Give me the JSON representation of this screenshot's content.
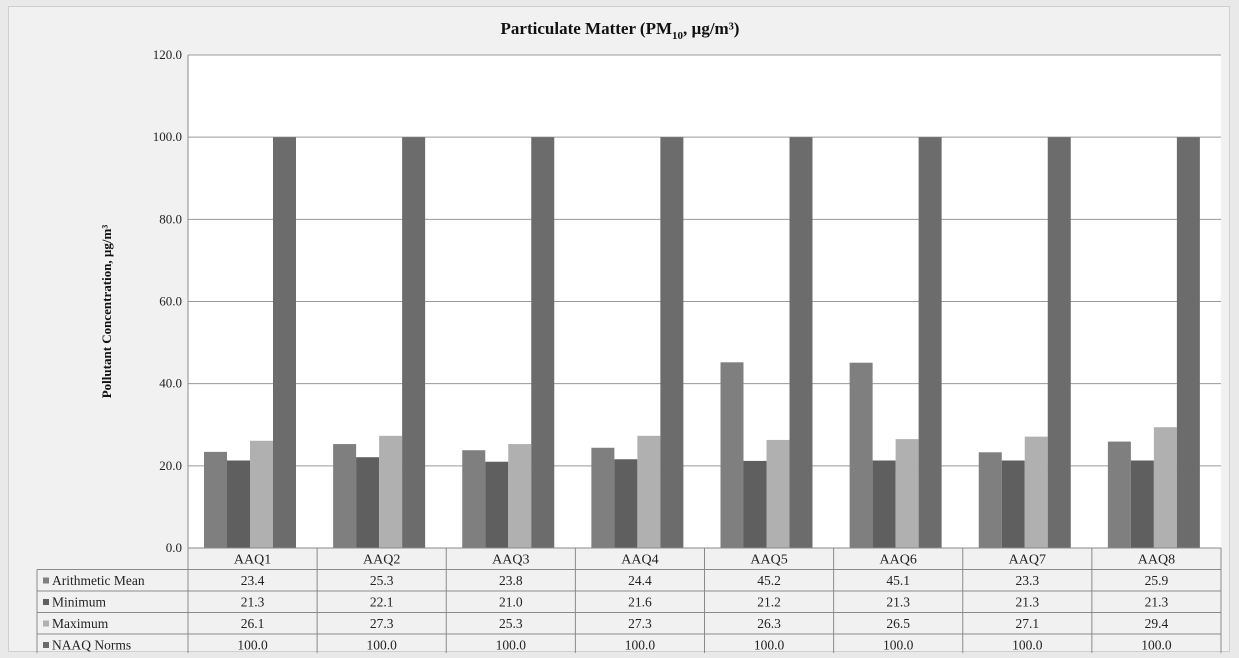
{
  "chart_data": {
    "type": "bar",
    "title_main": "Particulate Matter (PM",
    "title_sub": "10",
    "title_rest": ", µg/m³)",
    "ylabel": "Pollutant Concentration, µg/m³",
    "ylim": [
      0,
      120
    ],
    "yticks": [
      "0.0",
      "20.0",
      "40.0",
      "60.0",
      "80.0",
      "100.0",
      "120.0"
    ],
    "grid": true,
    "categories": [
      "AAQ1",
      "AAQ2",
      "AAQ3",
      "AAQ4",
      "AAQ5",
      "AAQ6",
      "AAQ7",
      "AAQ8"
    ],
    "series": [
      {
        "name": "Arithmetic Mean",
        "color": "#7f7f7f",
        "values": [
          23.4,
          25.3,
          23.8,
          24.4,
          45.2,
          45.1,
          23.3,
          25.9
        ]
      },
      {
        "name": "Minimum",
        "color": "#5f5f5f",
        "values": [
          21.3,
          22.1,
          21.0,
          21.6,
          21.2,
          21.3,
          21.3,
          21.3
        ]
      },
      {
        "name": "Maximum",
        "color": "#b0b0b0",
        "values": [
          26.1,
          27.3,
          25.3,
          27.3,
          26.3,
          26.5,
          27.1,
          29.4
        ]
      },
      {
        "name": "NAAQ Norms",
        "color": "#6c6c6c",
        "values": [
          100.0,
          100.0,
          100.0,
          100.0,
          100.0,
          100.0,
          100.0,
          100.0
        ]
      }
    ],
    "table_values": [
      [
        "23.4",
        "25.3",
        "23.8",
        "24.4",
        "45.2",
        "45.1",
        "23.3",
        "25.9"
      ],
      [
        "21.3",
        "22.1",
        "21.0",
        "21.6",
        "21.2",
        "21.3",
        "21.3",
        "21.3"
      ],
      [
        "26.1",
        "27.3",
        "25.3",
        "27.3",
        "26.3",
        "26.5",
        "27.1",
        "29.4"
      ],
      [
        "100.0",
        "100.0",
        "100.0",
        "100.0",
        "100.0",
        "100.0",
        "100.0",
        "100.0"
      ]
    ],
    "legend_placement": "data-table"
  }
}
